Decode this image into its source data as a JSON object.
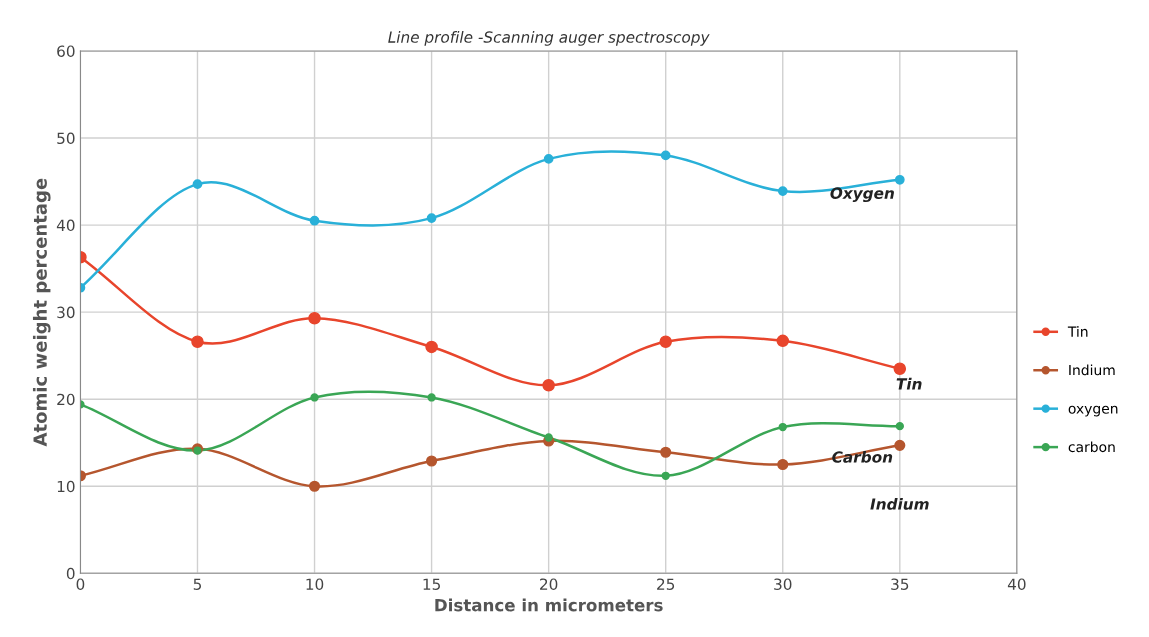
{
  "chart_data": {
    "type": "line",
    "title": "Line profile -Scanning auger spectroscopy",
    "xlabel": "Distance in micrometers",
    "ylabel": "Atomic weight percentage",
    "x": [
      0,
      5,
      10,
      15,
      20,
      25,
      30,
      35
    ],
    "series": [
      {
        "name": "Tin",
        "color": "#e8452c",
        "values": [
          36.3,
          26.6,
          29.3,
          26.0,
          21.6,
          26.6,
          26.7,
          23.5
        ]
      },
      {
        "name": "Indium",
        "color": "#b5562e",
        "values": [
          11.2,
          14.3,
          10.0,
          12.9,
          15.2,
          13.9,
          12.5,
          14.7
        ]
      },
      {
        "name": "oxygen",
        "color": "#29b0d8",
        "values": [
          32.8,
          44.7,
          40.5,
          40.8,
          47.6,
          48.0,
          43.9,
          45.2
        ]
      },
      {
        "name": "carbon",
        "color": "#3aa655",
        "values": [
          19.4,
          14.1,
          20.2,
          20.2,
          15.6,
          11.2,
          16.8,
          16.9
        ]
      }
    ],
    "annotations": [
      "Oxygen",
      "Tin",
      "Carbon",
      "Indium"
    ],
    "xlim": [
      0,
      40
    ],
    "xticks": [
      0,
      5,
      10,
      15,
      20,
      25,
      30,
      35,
      40
    ],
    "ylim": [
      0,
      60
    ],
    "yticks": [
      0,
      10,
      20,
      30,
      40,
      50,
      60
    ],
    "grid": true,
    "legend": "right",
    "marker": "circle",
    "line_style": "solid"
  }
}
